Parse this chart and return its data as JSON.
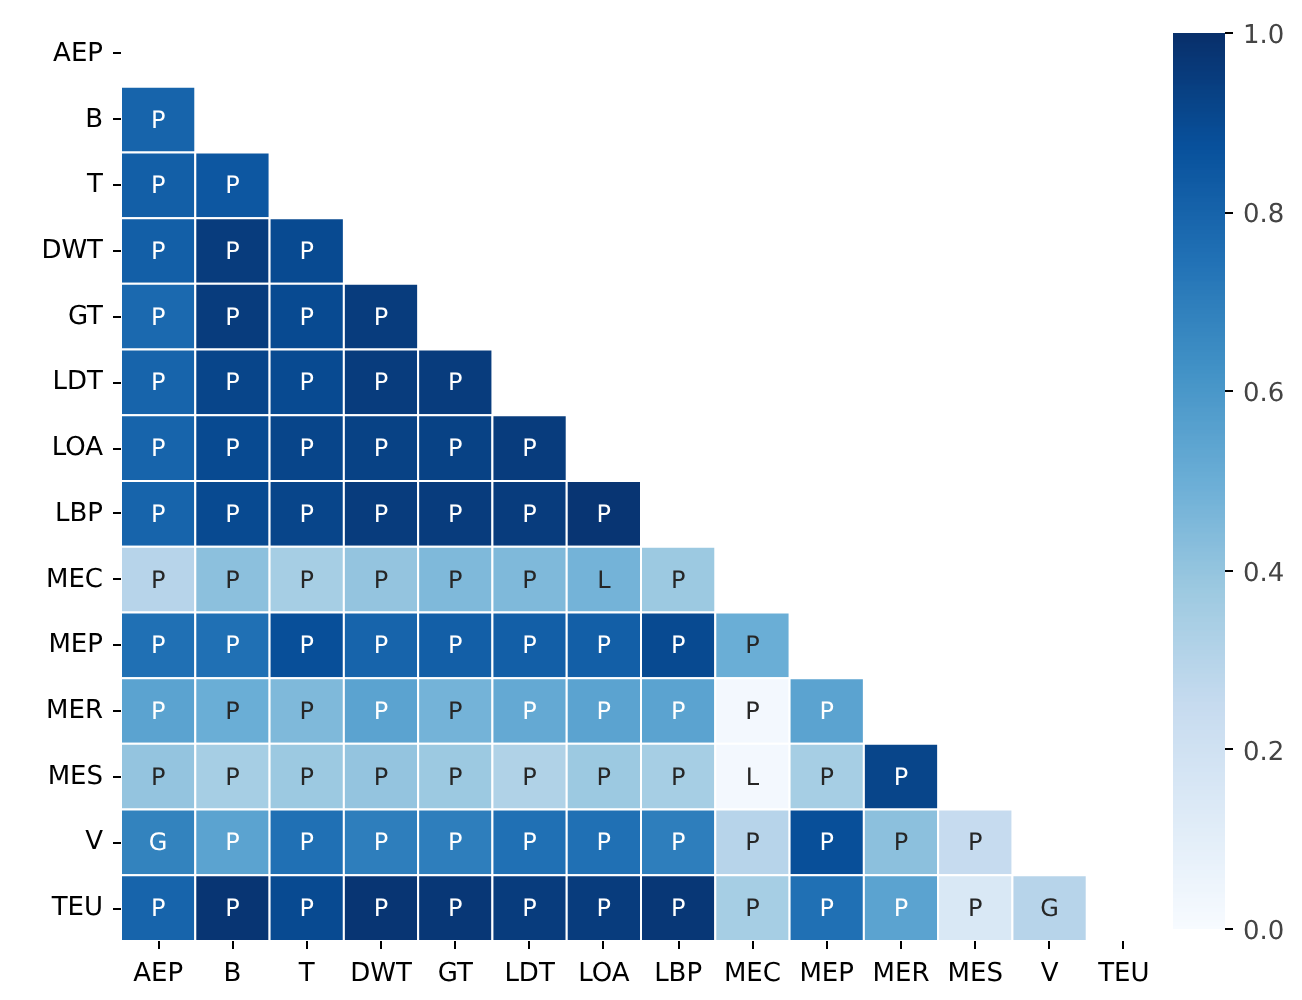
{
  "chart_data": {
    "type": "heatmap",
    "categories": [
      "AEP",
      "B",
      "T",
      "DWT",
      "GT",
      "LDT",
      "LOA",
      "LBP",
      "MEC",
      "MEP",
      "MER",
      "MES",
      "V",
      "TEU"
    ],
    "y_categories": [
      "AEP",
      "B",
      "T",
      "DWT",
      "GT",
      "LDT",
      "LOA",
      "LBP",
      "MEC",
      "MEP",
      "MER",
      "MES",
      "V",
      "TEU"
    ],
    "cells": [
      [
        null,
        null,
        null,
        null,
        null,
        null,
        null,
        null,
        null,
        null,
        null,
        null,
        null,
        null
      ],
      [
        0.8,
        null,
        null,
        null,
        null,
        null,
        null,
        null,
        null,
        null,
        null,
        null,
        null,
        null
      ],
      [
        0.82,
        0.85,
        null,
        null,
        null,
        null,
        null,
        null,
        null,
        null,
        null,
        null,
        null,
        null
      ],
      [
        0.82,
        0.95,
        0.9,
        null,
        null,
        null,
        null,
        null,
        null,
        null,
        null,
        null,
        null,
        null
      ],
      [
        0.78,
        0.95,
        0.9,
        0.95,
        null,
        null,
        null,
        null,
        null,
        null,
        null,
        null,
        null,
        null
      ],
      [
        0.8,
        0.92,
        0.9,
        0.95,
        0.95,
        null,
        null,
        null,
        null,
        null,
        null,
        null,
        null,
        null
      ],
      [
        0.8,
        0.9,
        0.92,
        0.93,
        0.93,
        0.95,
        null,
        null,
        null,
        null,
        null,
        null,
        null,
        null
      ],
      [
        0.8,
        0.9,
        0.92,
        0.95,
        0.95,
        0.95,
        0.98,
        null,
        null,
        null,
        null,
        null,
        null,
        null
      ],
      [
        0.3,
        0.42,
        0.35,
        0.4,
        0.45,
        0.45,
        0.48,
        0.38,
        null,
        null,
        null,
        null,
        null,
        null
      ],
      [
        0.75,
        0.75,
        0.88,
        0.8,
        0.82,
        0.82,
        0.82,
        0.9,
        0.5,
        null,
        null,
        null,
        null,
        null
      ],
      [
        0.55,
        0.5,
        0.45,
        0.55,
        0.48,
        0.52,
        0.55,
        0.55,
        0.02,
        0.55,
        null,
        null,
        null,
        null
      ],
      [
        0.4,
        0.35,
        0.38,
        0.4,
        0.38,
        0.32,
        0.38,
        0.35,
        0.02,
        0.35,
        0.92,
        null,
        null,
        null
      ],
      [
        0.68,
        0.55,
        0.75,
        0.7,
        0.7,
        0.75,
        0.75,
        0.7,
        0.3,
        0.88,
        0.42,
        0.25,
        null,
        null
      ],
      [
        0.8,
        0.98,
        0.9,
        0.98,
        0.97,
        0.95,
        0.95,
        0.97,
        0.35,
        0.75,
        0.55,
        0.15,
        0.3,
        null
      ]
    ],
    "cell_labels": [
      [
        null,
        null,
        null,
        null,
        null,
        null,
        null,
        null,
        null,
        null,
        null,
        null,
        null,
        null
      ],
      [
        "P",
        null,
        null,
        null,
        null,
        null,
        null,
        null,
        null,
        null,
        null,
        null,
        null,
        null
      ],
      [
        "P",
        "P",
        null,
        null,
        null,
        null,
        null,
        null,
        null,
        null,
        null,
        null,
        null,
        null
      ],
      [
        "P",
        "P",
        "P",
        null,
        null,
        null,
        null,
        null,
        null,
        null,
        null,
        null,
        null,
        null
      ],
      [
        "P",
        "P",
        "P",
        "P",
        null,
        null,
        null,
        null,
        null,
        null,
        null,
        null,
        null,
        null
      ],
      [
        "P",
        "P",
        "P",
        "P",
        "P",
        null,
        null,
        null,
        null,
        null,
        null,
        null,
        null,
        null
      ],
      [
        "P",
        "P",
        "P",
        "P",
        "P",
        "P",
        null,
        null,
        null,
        null,
        null,
        null,
        null,
        null
      ],
      [
        "P",
        "P",
        "P",
        "P",
        "P",
        "P",
        "P",
        null,
        null,
        null,
        null,
        null,
        null,
        null
      ],
      [
        "P",
        "P",
        "P",
        "P",
        "P",
        "P",
        "L",
        "P",
        null,
        null,
        null,
        null,
        null,
        null
      ],
      [
        "P",
        "P",
        "P",
        "P",
        "P",
        "P",
        "P",
        "P",
        "P",
        null,
        null,
        null,
        null,
        null
      ],
      [
        "P",
        "P",
        "P",
        "P",
        "P",
        "P",
        "P",
        "P",
        "P",
        "P",
        null,
        null,
        null,
        null
      ],
      [
        "P",
        "P",
        "P",
        "P",
        "P",
        "P",
        "P",
        "P",
        "L",
        "P",
        "P",
        null,
        null,
        null
      ],
      [
        "G",
        "P",
        "P",
        "P",
        "P",
        "P",
        "P",
        "P",
        "P",
        "P",
        "P",
        "P",
        null,
        null
      ],
      [
        "P",
        "P",
        "P",
        "P",
        "P",
        "P",
        "P",
        "P",
        "P",
        "P",
        "P",
        "P",
        "G",
        null
      ]
    ],
    "clim": [
      0,
      1
    ],
    "cticks": [
      {
        "value": 0,
        "label": "0.0"
      },
      {
        "value": 0.2,
        "label": "0.2"
      },
      {
        "value": 0.4,
        "label": "0.4"
      },
      {
        "value": 0.6,
        "label": "0.6"
      },
      {
        "value": 0.8,
        "label": "0.8"
      },
      {
        "value": 1,
        "label": "1.0"
      }
    ]
  }
}
